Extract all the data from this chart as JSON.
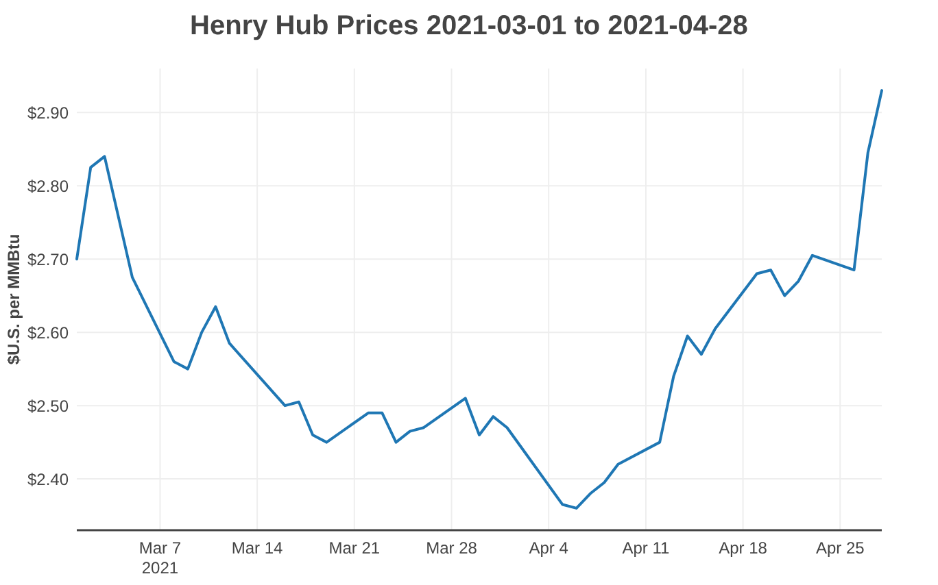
{
  "chart_data": {
    "type": "line",
    "title": "Henry Hub Prices 2021-03-01 to 2021-04-28",
    "ylabel": "$U.S. per MMBtu",
    "x": [
      "2021-03-01",
      "2021-03-02",
      "2021-03-03",
      "2021-03-05",
      "2021-03-08",
      "2021-03-09",
      "2021-03-10",
      "2021-03-11",
      "2021-03-12",
      "2021-03-16",
      "2021-03-17",
      "2021-03-18",
      "2021-03-19",
      "2021-03-22",
      "2021-03-23",
      "2021-03-24",
      "2021-03-25",
      "2021-03-26",
      "2021-03-29",
      "2021-03-30",
      "2021-03-31",
      "2021-04-01",
      "2021-04-05",
      "2021-04-06",
      "2021-04-07",
      "2021-04-08",
      "2021-04-09",
      "2021-04-12",
      "2021-04-13",
      "2021-04-14",
      "2021-04-15",
      "2021-04-16",
      "2021-04-19",
      "2021-04-20",
      "2021-04-21",
      "2021-04-22",
      "2021-04-23",
      "2021-04-26",
      "2021-04-27",
      "2021-04-28"
    ],
    "series": [
      {
        "color": "#1f77b4",
        "values": [
          2.7,
          2.825,
          2.84,
          2.675,
          2.56,
          2.55,
          2.6,
          2.635,
          2.585,
          2.5,
          2.505,
          2.46,
          2.45,
          2.49,
          2.49,
          2.45,
          2.465,
          2.47,
          2.51,
          2.46,
          2.485,
          2.47,
          2.365,
          2.36,
          2.38,
          2.395,
          2.42,
          2.45,
          2.54,
          2.595,
          2.57,
          2.605,
          2.68,
          2.685,
          2.65,
          2.67,
          2.705,
          2.685,
          2.845,
          2.93
        ]
      }
    ],
    "xlim": [
      "2021-03-01",
      "2021-04-28"
    ],
    "xticks": [
      {
        "value": "2021-03-07",
        "label": "Mar 7\n2021"
      },
      {
        "value": "2021-03-14",
        "label": "Mar 14"
      },
      {
        "value": "2021-03-21",
        "label": "Mar 21"
      },
      {
        "value": "2021-03-28",
        "label": "Mar 28"
      },
      {
        "value": "2021-04-04",
        "label": "Apr 4"
      },
      {
        "value": "2021-04-11",
        "label": "Apr 11"
      },
      {
        "value": "2021-04-18",
        "label": "Apr 18"
      },
      {
        "value": "2021-04-25",
        "label": "Apr 25"
      }
    ],
    "ylim": [
      2.33,
      2.96
    ],
    "yticks": [
      {
        "value": 2.4,
        "label": "$2.40"
      },
      {
        "value": 2.5,
        "label": "$2.50"
      },
      {
        "value": 2.6,
        "label": "$2.60"
      },
      {
        "value": 2.7,
        "label": "$2.70"
      },
      {
        "value": 2.8,
        "label": "$2.80"
      },
      {
        "value": 2.9,
        "label": "$2.90"
      }
    ],
    "grid": true,
    "marker": "none",
    "line_style": "solid"
  }
}
